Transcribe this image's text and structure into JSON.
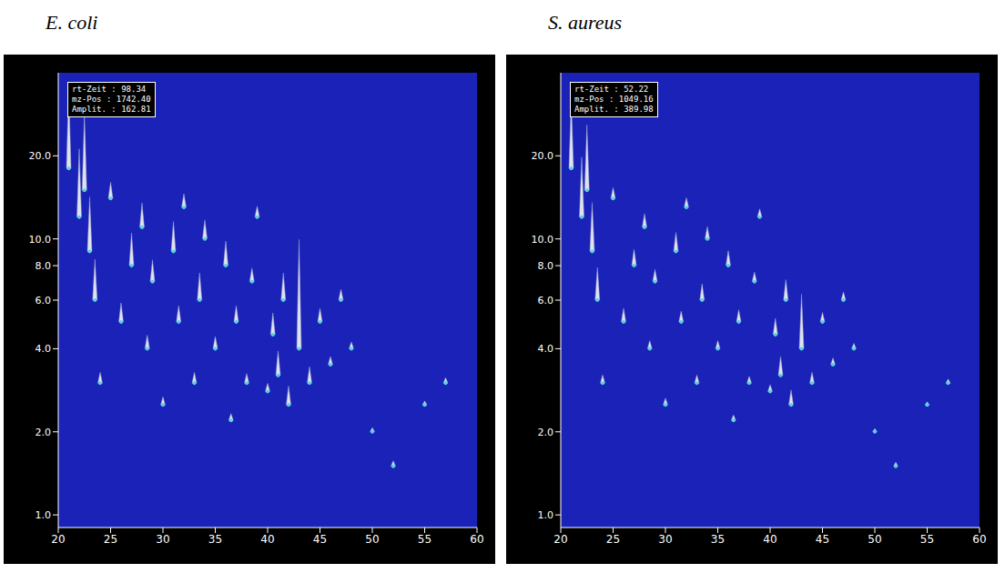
{
  "chart_data": [
    {
      "type": "scatter",
      "title": "E. coli",
      "info": [
        "rt-Zeit : 98.34",
        "mz-Pos : 1742.40",
        "Amplit. : 162.81"
      ],
      "xlim": [
        20,
        60
      ],
      "xticks": [
        20,
        25,
        30,
        35,
        40,
        45,
        50,
        55,
        60
      ],
      "ylim": [
        0.9,
        40
      ],
      "log": "y",
      "yticks": [
        {
          "value": 1,
          "label": "1.0"
        },
        {
          "value": 2,
          "label": "2.0"
        },
        {
          "value": 4,
          "label": "4.0"
        },
        {
          "value": 6,
          "label": "6.0"
        },
        {
          "value": 8,
          "label": "8.0"
        },
        {
          "value": 10,
          "label": "10.0"
        },
        {
          "value": 20,
          "label": "20.0"
        }
      ],
      "color": "#dfe3f0",
      "grid": false,
      "x": [
        21,
        22,
        22.5,
        23,
        23.5,
        24,
        25,
        26,
        27,
        28,
        28.5,
        29,
        30,
        31,
        31.5,
        32,
        33,
        33.5,
        34,
        35,
        36,
        36.5,
        37,
        38,
        38.5,
        39,
        40,
        40.5,
        41,
        41.5,
        42,
        43,
        44,
        45,
        46,
        47,
        48,
        50,
        52,
        55,
        57
      ],
      "values": [
        18,
        12,
        15,
        9,
        6,
        3,
        14,
        5,
        8,
        11,
        4,
        7,
        2.5,
        9,
        5,
        13,
        3,
        6,
        10,
        4,
        8,
        2.2,
        5,
        3,
        7,
        12,
        2.8,
        4.5,
        3.2,
        6,
        2.5,
        4,
        3,
        5,
        3.5,
        6,
        4,
        2,
        1.5,
        2.5,
        3
      ],
      "amplitude": [
        300,
        250,
        280,
        200,
        150,
        40,
        60,
        70,
        120,
        90,
        50,
        80,
        30,
        110,
        60,
        50,
        40,
        100,
        70,
        45,
        90,
        25,
        60,
        35,
        50,
        40,
        30,
        80,
        90,
        100,
        70,
        400,
        60,
        50,
        30,
        40,
        25,
        15,
        20,
        15,
        20
      ]
    },
    {
      "type": "scatter",
      "title": "S. aureus",
      "info": [
        "rt-Zeit : 52.22",
        "mz-Pos : 1049.16",
        "Amplit. : 389.98"
      ],
      "xlim": [
        20,
        60
      ],
      "xticks": [
        20,
        25,
        30,
        35,
        40,
        45,
        50,
        55,
        60
      ],
      "ylim": [
        0.9,
        40
      ],
      "log": "y",
      "yticks": [
        {
          "value": 1,
          "label": "1.0"
        },
        {
          "value": 2,
          "label": "2.0"
        },
        {
          "value": 4,
          "label": "4.0"
        },
        {
          "value": 6,
          "label": "6.0"
        },
        {
          "value": 8,
          "label": "8.0"
        },
        {
          "value": 10,
          "label": "10.0"
        },
        {
          "value": 20,
          "label": "20.0"
        }
      ],
      "color": "#dfe3f0",
      "grid": false,
      "x": [
        21,
        22,
        22.5,
        23,
        23.5,
        24,
        25,
        26,
        27,
        28,
        28.5,
        29,
        30,
        31,
        31.5,
        32,
        33,
        33.5,
        34,
        35,
        36,
        36.5,
        37,
        38,
        38.5,
        39,
        40,
        40.5,
        41,
        41.5,
        42,
        43,
        44,
        45,
        46,
        47,
        48,
        50,
        52,
        55,
        57
      ],
      "values": [
        18,
        12,
        15,
        9,
        6,
        3,
        14,
        5,
        8,
        11,
        4,
        7,
        2.5,
        9,
        5,
        13,
        3,
        6,
        10,
        4,
        8,
        2.2,
        5,
        3,
        7,
        12,
        2.8,
        4.5,
        3.2,
        6,
        2.5,
        4,
        3,
        5,
        3.5,
        6,
        4,
        2,
        1.5,
        2.5,
        3
      ],
      "amplitude": [
        250,
        220,
        240,
        180,
        120,
        30,
        40,
        50,
        60,
        50,
        30,
        45,
        25,
        70,
        40,
        35,
        30,
        60,
        45,
        30,
        55,
        20,
        45,
        25,
        35,
        30,
        25,
        60,
        70,
        75,
        55,
        200,
        40,
        35,
        25,
        30,
        20,
        12,
        15,
        12,
        15
      ]
    }
  ]
}
